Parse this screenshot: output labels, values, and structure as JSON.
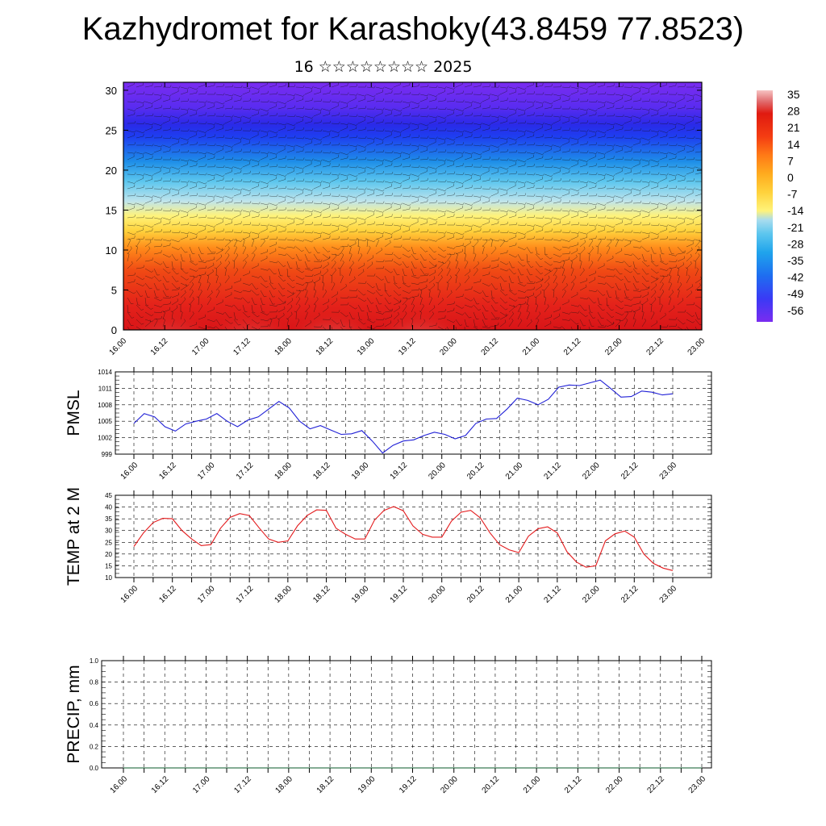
{
  "header": {
    "title": "Kazhydromet for Karashoky(43.8459 77.8523)",
    "subtitle": "16 ☆☆☆☆☆☆☆☆ 2025"
  },
  "colors": {
    "pmsl_line": "#1f1fd6",
    "temp_line": "#e31a1c",
    "precip_line": "#0a5a2a"
  },
  "chart_data": [
    {
      "type": "heatmap",
      "name": "cross-section",
      "x_tick_labels": [
        "16.00",
        "16.12",
        "17.00",
        "17.12",
        "18.00",
        "18.12",
        "19.00",
        "19.12",
        "20.00",
        "20.12",
        "21.00",
        "21.12",
        "22.00",
        "22.12",
        "23.00"
      ],
      "y_tick_labels": [
        "0",
        "5",
        "10",
        "15",
        "20",
        "25",
        "30"
      ],
      "ylim": [
        0,
        31
      ],
      "colorbar_labels": [
        "35",
        "28",
        "21",
        "14",
        "7",
        "0",
        "-7",
        "-14",
        "-21",
        "-28",
        "-35",
        "-42",
        "-49",
        "-56"
      ],
      "colorbar_range": [
        -60,
        38
      ],
      "colorbar_colors": [
        "#7a2cf0",
        "#3a3af5",
        "#1e6ef0",
        "#1fa4ec",
        "#5cc6ee",
        "#a8dcee",
        "#d8eecc",
        "#fff37a",
        "#ffd23c",
        "#ffab1e",
        "#ff7a16",
        "#f43d12",
        "#e01a10",
        "#d81418",
        "#e0686a",
        "#f6c2c2"
      ],
      "wind_barbs": true
    },
    {
      "type": "line",
      "ylabel": "PMSL",
      "y_tick_labels": [
        "1014",
        "1011",
        "1008",
        "1005",
        "1002",
        "999"
      ],
      "ylim": [
        999,
        1014
      ],
      "x_tick_labels": [
        "16.00",
        "16.12",
        "17.00",
        "17.12",
        "18.00",
        "18.12",
        "19.00",
        "19.12",
        "20.00",
        "20.12",
        "21.00",
        "21.12",
        "22.00",
        "22.12",
        "23.00"
      ],
      "series": [
        {
          "values": [
            1004.6,
            1006.4,
            1005.8,
            1004.0,
            1003.2,
            1004.5,
            1005.0,
            1005.4,
            1006.4,
            1005.0,
            1004.0,
            1005.2,
            1005.8,
            1007.2,
            1008.6,
            1007.4,
            1005.0,
            1003.6,
            1004.2,
            1003.4,
            1002.6,
            1002.7,
            1003.3,
            1001.4,
            999.2,
            1000.6,
            1001.4,
            1001.6,
            1002.4,
            1003.0,
            1002.6,
            1001.8,
            1002.4,
            1004.6,
            1005.4,
            1005.5,
            1007.2,
            1009.2,
            1008.8,
            1008.0,
            1009.0,
            1011.2,
            1011.6,
            1011.5,
            1012.0,
            1012.5,
            1011.0,
            1009.4,
            1009.5,
            1010.5,
            1010.3,
            1009.8,
            1010.0
          ]
        }
      ]
    },
    {
      "type": "line",
      "ylabel": "TEMP at 2 M",
      "y_tick_labels": [
        "45",
        "40",
        "35",
        "30",
        "25",
        "20",
        "15",
        "10"
      ],
      "ylim": [
        10,
        45
      ],
      "x_tick_labels": [
        "16.00",
        "16.12",
        "17.00",
        "17.12",
        "18.00",
        "18.12",
        "19.00",
        "19.12",
        "20.00",
        "20.12",
        "21.00",
        "21.12",
        "22.00",
        "22.12",
        "23.00"
      ],
      "series": [
        {
          "values": [
            23.2,
            29.0,
            33.4,
            35.2,
            35.0,
            30.0,
            26.4,
            23.6,
            24.0,
            31.0,
            35.6,
            37.2,
            36.4,
            31.2,
            26.4,
            25.0,
            25.6,
            32.0,
            36.4,
            38.8,
            38.6,
            31.0,
            28.4,
            26.4,
            26.4,
            34.4,
            38.6,
            40.2,
            38.4,
            32.0,
            28.4,
            27.2,
            27.2,
            34.0,
            37.8,
            38.6,
            35.4,
            29.0,
            24.0,
            21.8,
            20.6,
            27.6,
            30.8,
            31.6,
            29.0,
            21.0,
            16.6,
            14.4,
            15.0,
            25.6,
            28.6,
            29.8,
            27.2,
            20.0,
            16.0,
            14.0,
            13.0
          ]
        }
      ]
    },
    {
      "type": "line",
      "ylabel": "PRECIP, mm",
      "y_tick_labels": [
        "1.0",
        "0.8",
        "0.6",
        "0.4",
        "0.2",
        "0.0"
      ],
      "ylim": [
        0,
        1.0
      ],
      "x_tick_labels": [
        "16.00",
        "16.12",
        "17.00",
        "17.12",
        "18.00",
        "18.12",
        "19.00",
        "19.12",
        "20.00",
        "20.12",
        "21.00",
        "21.12",
        "22.00",
        "22.12",
        "23.00"
      ],
      "series": [
        {
          "values": [
            0,
            0,
            0,
            0,
            0,
            0,
            0,
            0,
            0,
            0,
            0,
            0,
            0,
            0,
            0,
            0,
            0,
            0,
            0,
            0,
            0,
            0,
            0,
            0,
            0,
            0,
            0,
            0,
            0,
            0,
            0,
            0,
            0,
            0,
            0,
            0,
            0,
            0,
            0,
            0,
            0,
            0,
            0,
            0,
            0,
            0,
            0,
            0,
            0,
            0,
            0,
            0,
            0,
            0,
            0,
            0,
            0
          ]
        }
      ]
    }
  ]
}
